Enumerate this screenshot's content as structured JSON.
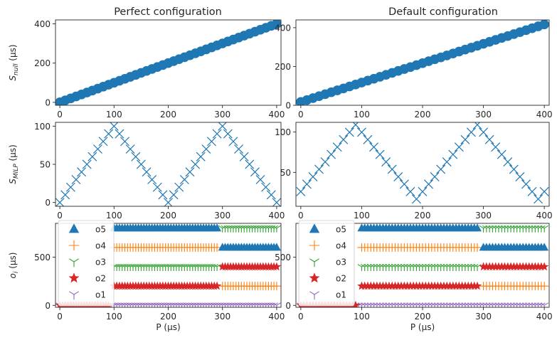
{
  "figure": {
    "columns": [
      {
        "title": "Perfect configuration"
      },
      {
        "title": "Default configuration"
      }
    ]
  },
  "chart_data": [
    {
      "id": "perfect-snull",
      "type": "scatter",
      "marker": "circle",
      "color": "#1f77b4",
      "ylabel": {
        "base": "S",
        "sub": "null",
        "unit": "(μs)"
      },
      "xlim": [
        -8,
        408
      ],
      "ylim": [
        -15,
        420
      ],
      "xticks": [
        0,
        100,
        200,
        300,
        400
      ],
      "yticks": [
        0,
        200,
        400
      ],
      "series": [
        {
          "x_start": 0,
          "x_end": 400,
          "step": 10,
          "pattern": "linear",
          "y_start": 0,
          "y_end": 400
        }
      ]
    },
    {
      "id": "default-snull",
      "type": "scatter",
      "marker": "circle",
      "color": "#1f77b4",
      "ylabel": null,
      "xlim": [
        -8,
        408
      ],
      "ylim": [
        0,
        440
      ],
      "xticks": [
        0,
        100,
        200,
        300,
        400
      ],
      "yticks": [
        0,
        200,
        400
      ],
      "series": [
        {
          "x_start": 0,
          "x_end": 400,
          "step": 10,
          "pattern": "linear",
          "y_start": 17,
          "y_end": 417
        }
      ]
    },
    {
      "id": "perfect-smilp",
      "type": "scatter",
      "marker": "x",
      "color": "#1f77b4",
      "ylabel": {
        "base": "S",
        "sub": "MILP",
        "unit": "(μs)"
      },
      "xlim": [
        -8,
        408
      ],
      "ylim": [
        -5,
        105
      ],
      "xticks": [
        0,
        100,
        200,
        300,
        400
      ],
      "yticks": [
        0,
        50,
        100
      ],
      "series": [
        {
          "x_start": 0,
          "x_end": 400,
          "step": 10,
          "pattern": "triangle",
          "period": 200,
          "amplitude": 100,
          "offset": 0
        }
      ]
    },
    {
      "id": "default-smilp",
      "type": "scatter",
      "marker": "x",
      "color": "#1f77b4",
      "ylabel": null,
      "xlim": [
        -8,
        408
      ],
      "ylim": [
        8,
        112
      ],
      "xticks": [
        0,
        100,
        200,
        300,
        400
      ],
      "yticks": [
        50,
        100
      ],
      "series": [
        {
          "x_start": 0,
          "x_end": 400,
          "step": 10,
          "pattern": "triangle_shift",
          "period": 200,
          "min": 17,
          "max": 109,
          "x_min": -10,
          "x_max": 90
        }
      ]
    },
    {
      "id": "perfect-oi",
      "type": "scatter",
      "ylabel": {
        "base": "o",
        "sub": "i",
        "unit": "(μs)"
      },
      "xlim": [
        -8,
        408
      ],
      "ylim": [
        -20,
        850
      ],
      "xticks": [
        0,
        100,
        200,
        300,
        400
      ],
      "yticks": [
        0,
        500
      ],
      "xlabel": "P (μs)",
      "legend": {
        "placement": "upper-left",
        "items": [
          "o5",
          "o4",
          "o3",
          "o2",
          "o1"
        ]
      },
      "series": [
        {
          "name": "o5",
          "marker": "triangle",
          "color": "#1f77b4",
          "segments": [
            [
              100,
              290,
              800
            ],
            [
              300,
              400,
              600
            ]
          ]
        },
        {
          "name": "o4",
          "marker": "plus",
          "color": "#ff7f0e",
          "segments": [
            [
              100,
              290,
              600
            ],
            [
              300,
              400,
              200
            ]
          ]
        },
        {
          "name": "o3",
          "marker": "tri-down",
          "color": "#2ca02c",
          "segments": [
            [
              100,
              290,
              400
            ],
            [
              300,
              400,
              800
            ]
          ]
        },
        {
          "name": "o2",
          "marker": "star",
          "color": "#d62728",
          "segments": [
            [
              0,
              90,
              0
            ],
            [
              100,
              290,
              200
            ],
            [
              300,
              400,
              400
            ]
          ]
        },
        {
          "name": "o1",
          "marker": "tri-down",
          "color": "#9467bd",
          "segments": [
            [
              0,
              400,
              0
            ]
          ]
        }
      ]
    },
    {
      "id": "default-oi",
      "type": "scatter",
      "ylabel": null,
      "xlim": [
        -8,
        408
      ],
      "ylim": [
        -20,
        850
      ],
      "xticks": [
        0,
        100,
        200,
        300,
        400
      ],
      "yticks": [
        0,
        500
      ],
      "xlabel": "P (μs)",
      "legend": {
        "placement": "upper-left",
        "items": [
          "o5",
          "o4",
          "o3",
          "o2",
          "o1"
        ]
      },
      "series": [
        {
          "name": "o5",
          "marker": "triangle",
          "color": "#1f77b4",
          "segments": [
            [
              100,
              290,
              800
            ],
            [
              300,
              400,
              600
            ]
          ]
        },
        {
          "name": "o4",
          "marker": "plus",
          "color": "#ff7f0e",
          "segments": [
            [
              100,
              290,
              600
            ],
            [
              300,
              400,
              200
            ]
          ]
        },
        {
          "name": "o3",
          "marker": "tri-down",
          "color": "#2ca02c",
          "segments": [
            [
              100,
              290,
              400
            ],
            [
              300,
              400,
              800
            ]
          ]
        },
        {
          "name": "o2",
          "marker": "star",
          "color": "#d62728",
          "segments": [
            [
              0,
              90,
              0
            ],
            [
              100,
              290,
              200
            ],
            [
              300,
              400,
              400
            ]
          ]
        },
        {
          "name": "o1",
          "marker": "tri-down",
          "color": "#9467bd",
          "segments": [
            [
              0,
              400,
              0
            ]
          ]
        }
      ]
    }
  ]
}
